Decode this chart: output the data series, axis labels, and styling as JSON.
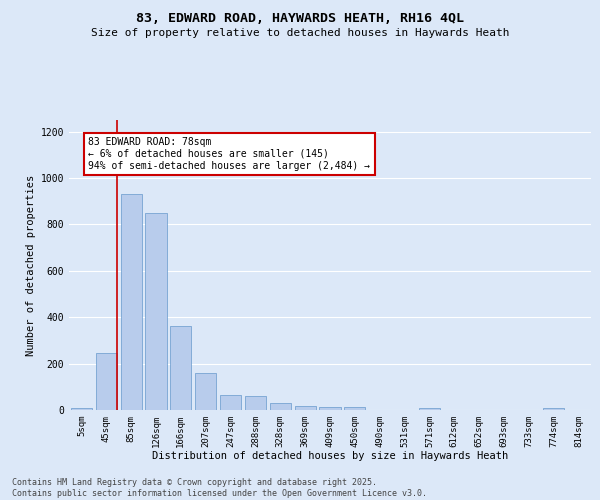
{
  "title": "83, EDWARD ROAD, HAYWARDS HEATH, RH16 4QL",
  "subtitle": "Size of property relative to detached houses in Haywards Heath",
  "xlabel": "Distribution of detached houses by size in Haywards Heath",
  "ylabel": "Number of detached properties",
  "bar_labels": [
    "5sqm",
    "45sqm",
    "85sqm",
    "126sqm",
    "166sqm",
    "207sqm",
    "247sqm",
    "288sqm",
    "328sqm",
    "369sqm",
    "409sqm",
    "450sqm",
    "490sqm",
    "531sqm",
    "571sqm",
    "612sqm",
    "652sqm",
    "693sqm",
    "733sqm",
    "774sqm",
    "814sqm"
  ],
  "bar_values": [
    8,
    245,
    930,
    850,
    360,
    160,
    65,
    62,
    30,
    18,
    12,
    12,
    0,
    0,
    10,
    0,
    0,
    0,
    0,
    8,
    0
  ],
  "bar_color": "#b8ccec",
  "bar_edge_color": "#6699cc",
  "vline_color": "#cc0000",
  "vline_x": 1.45,
  "annotation_text": "83 EDWARD ROAD: 78sqm\n← 6% of detached houses are smaller (145)\n94% of semi-detached houses are larger (2,484) →",
  "annotation_box_facecolor": "#ffffff",
  "annotation_box_edgecolor": "#cc0000",
  "ylim": [
    0,
    1250
  ],
  "yticks": [
    0,
    200,
    400,
    600,
    800,
    1000,
    1200
  ],
  "bg_color": "#dce8f8",
  "grid_color": "#ffffff",
  "footer_text": "Contains HM Land Registry data © Crown copyright and database right 2025.\nContains public sector information licensed under the Open Government Licence v3.0."
}
